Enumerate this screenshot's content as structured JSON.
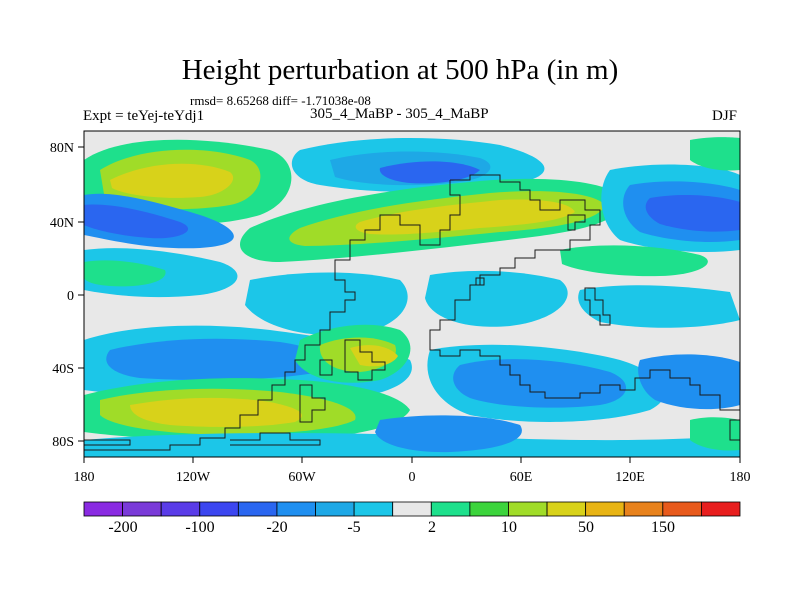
{
  "title": "Height perturbation at 500 hPa (in m)",
  "stats": "rmsd= 8.65268 diff= -1.71038e-08",
  "experiment": "Expt = teYej-teYdj1",
  "subtitle": "305_4_MaBP - 305_4_MaBP",
  "season": "DJF",
  "axes": {
    "x_ticks": [
      "180",
      "120W",
      "60W",
      "0",
      "60E",
      "120E",
      "180"
    ],
    "y_ticks": [
      "80N",
      "40N",
      "0",
      "40S",
      "80S"
    ]
  },
  "colorbar": {
    "colors": [
      "#8a2be2",
      "#7a3ad8",
      "#5a3ce8",
      "#3c46f0",
      "#2a66f0",
      "#1f8ff0",
      "#1ea8e6",
      "#1cc6e8",
      "#e8e8e8",
      "#1ee08c",
      "#3cd43c",
      "#a0dc28",
      "#d8d21a",
      "#e8b414",
      "#e8821c",
      "#e85a1c",
      "#e81e1e"
    ],
    "labels": [
      "-200",
      "-100",
      "-20",
      "-5",
      "2",
      "10",
      "50",
      "150"
    ]
  }
}
